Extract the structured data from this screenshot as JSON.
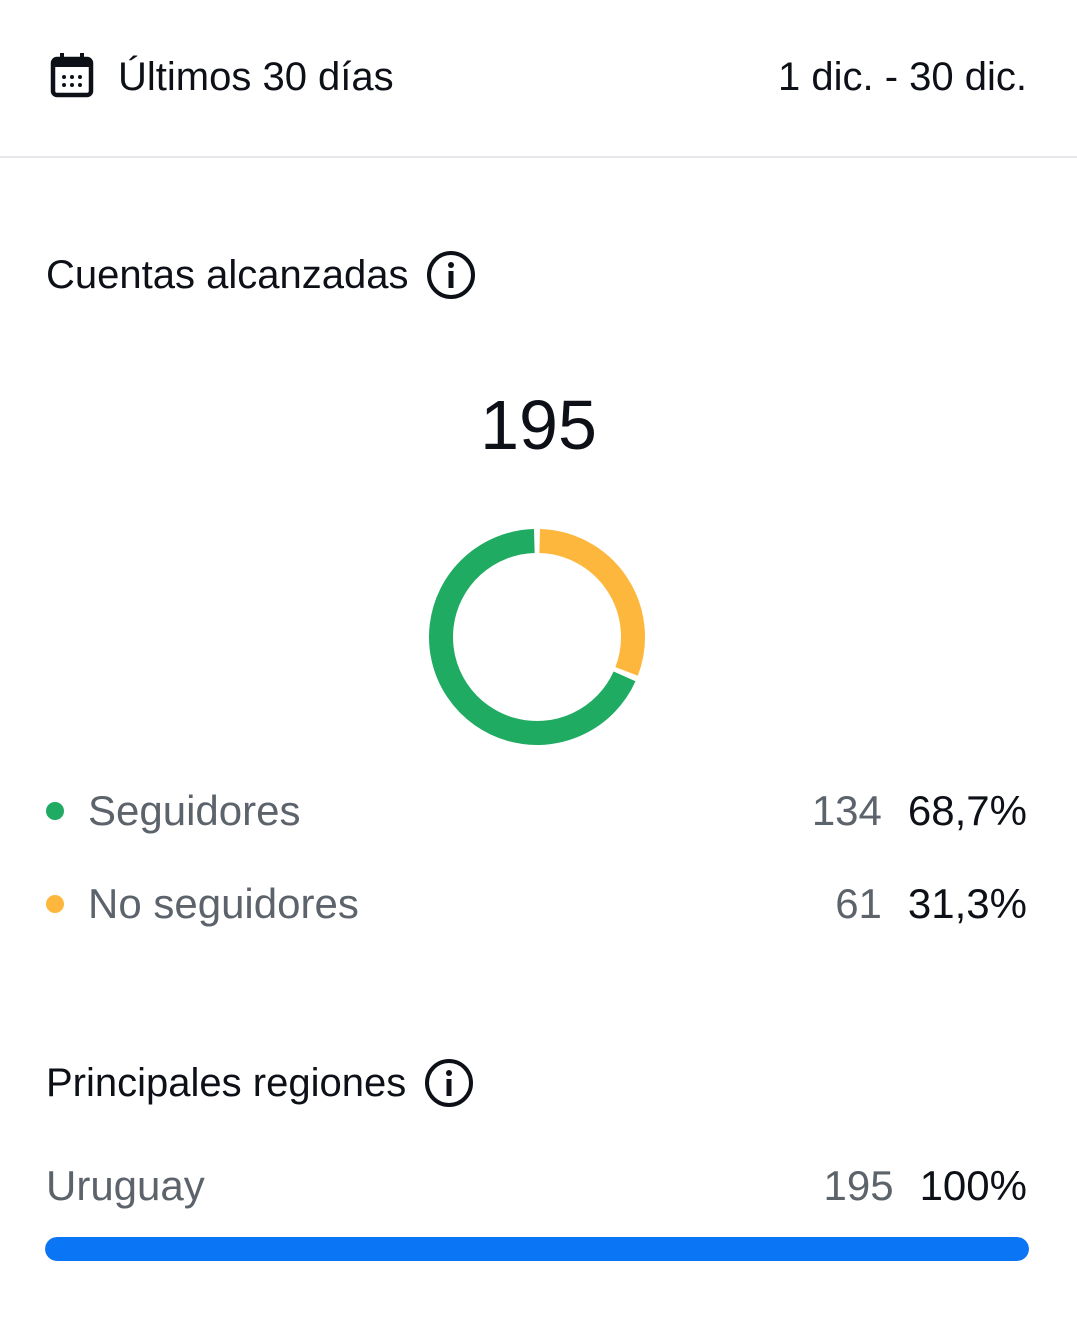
{
  "header": {
    "title": "Últimos 30 días",
    "range": "1 dic. - 30 dic.",
    "icon": "calendar-icon"
  },
  "reach": {
    "title": "Cuentas alcanzadas",
    "total": "195",
    "items": [
      {
        "label": "Seguidores",
        "count": "134",
        "percent": "68,7%",
        "value": 68.7,
        "color": "#20ab62"
      },
      {
        "label": "No seguidores",
        "count": "61",
        "percent": "31,3%",
        "value": 31.3,
        "color": "#fdb73c"
      }
    ]
  },
  "chart_data": {
    "type": "pie",
    "categories": [
      "Seguidores",
      "No seguidores"
    ],
    "values": [
      134,
      61
    ],
    "colors": [
      "#20ab62",
      "#fdb73c"
    ]
  },
  "regions": {
    "title": "Principales regiones",
    "items": [
      {
        "label": "Uruguay",
        "count": "195",
        "percent": "100%",
        "value": 100,
        "color": "#0a76f6"
      }
    ]
  }
}
